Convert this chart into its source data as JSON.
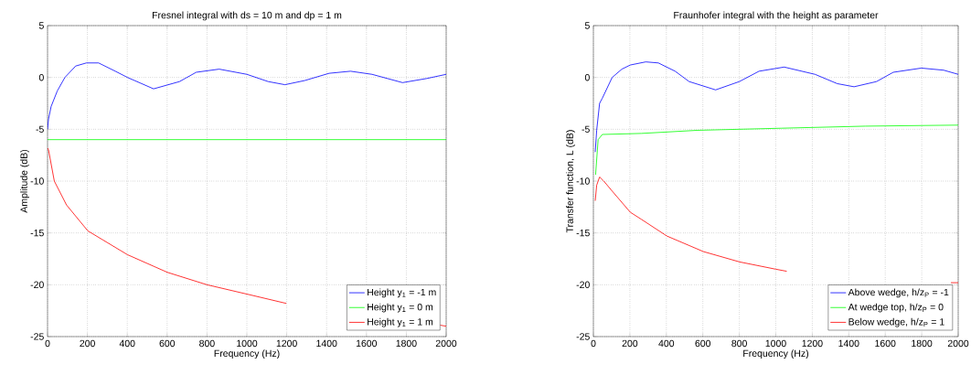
{
  "chart_data": [
    {
      "type": "line",
      "title": "Fresnel integral with ds = 10 m and dp = 1 m",
      "xlabel": "Frequency (Hz)",
      "ylabel": "Amplitude (dB)",
      "xlim": [
        0,
        2000
      ],
      "ylim": [
        -25,
        5
      ],
      "xticks": [
        0,
        200,
        400,
        600,
        800,
        1000,
        1200,
        1400,
        1600,
        1800,
        2000
      ],
      "yticks": [
        -25,
        -20,
        -15,
        -10,
        -5,
        0,
        5
      ],
      "grid": true,
      "legend": "bottom right",
      "series": [
        {
          "name": "Height y$_{1}$ = -1 m",
          "color": "#0000ff",
          "x": [
            0,
            5,
            18,
            49,
            87,
            141,
            195,
            256,
            340,
            401,
            532,
            662,
            746,
            861,
            1000,
            1107,
            1191,
            1290,
            1413,
            1520,
            1628,
            1781,
            1903,
            2000
          ],
          "values": [
            -5,
            -4,
            -2.8,
            -1.3,
            0,
            1.1,
            1.4,
            1.4,
            0.6,
            0,
            -1.1,
            -0.4,
            0.5,
            0.8,
            0.3,
            -0.4,
            -0.7,
            -0.3,
            0.4,
            0.6,
            0.3,
            -0.5,
            -0.1,
            0.3
          ]
        },
        {
          "name": "Height y$_{1}$ = 0 m",
          "color": "#00ff00",
          "x": [
            0,
            2000
          ],
          "values": [
            -6,
            -6
          ]
        },
        {
          "name": "Height y$_{1}$ = 1 m",
          "color": "#ff0000",
          "x": [
            0,
            5,
            34,
            95,
            202,
            401,
            601,
            800,
            1000,
            1198,
            1300,
            1970,
            2000
          ],
          "values": [
            -6.8,
            -7,
            -10,
            -12.3,
            -14.8,
            -17.1,
            -18.8,
            -20,
            -20.9,
            -21.8,
            null,
            -23.9,
            -24
          ]
        }
      ]
    },
    {
      "type": "line",
      "title": "Fraunhofer integral with the height as parameter",
      "xlabel": "Frequency (Hz)",
      "ylabel": "Transfer function, L (dB)",
      "xlim": [
        0,
        2000
      ],
      "ylim": [
        -25,
        5
      ],
      "xticks": [
        0,
        200,
        400,
        600,
        800,
        1000,
        1200,
        1400,
        1600,
        1800,
        2000
      ],
      "yticks": [
        -25,
        -20,
        -15,
        -10,
        -5,
        0,
        5
      ],
      "grid": true,
      "legend": "bottom right",
      "series": [
        {
          "name": "Above wedge,  h/z$_{P}$ = -1",
          "color": "#0000ff",
          "x": [
            10,
            18,
            34,
            49,
            103,
            156,
            202,
            287,
            356,
            448,
            525,
            670,
            800,
            908,
            1046,
            1215,
            1337,
            1429,
            1552,
            1644,
            1798,
            1920,
            2000
          ],
          "values": [
            -7.2,
            -5.1,
            -2.5,
            -2,
            0,
            0.8,
            1.2,
            1.5,
            1.4,
            0.6,
            -0.4,
            -1.2,
            -0.4,
            0.6,
            1,
            0.3,
            -0.6,
            -0.9,
            -0.4,
            0.5,
            0.9,
            0.7,
            0.3
          ]
        },
        {
          "name": "At wedge top, h/z$_{P}$ =  0",
          "color": "#00ff00",
          "x": [
            12,
            26,
            49,
            264,
            571,
            1031,
            1491,
            2000
          ],
          "values": [
            -9.4,
            -6,
            -5.5,
            -5.4,
            -5.1,
            -4.9,
            -4.7,
            -4.6
          ]
        },
        {
          "name": "Below wedge,  h/z$_{P}$ =  1",
          "color": "#ff0000",
          "x": [
            10,
            18,
            34,
            57,
            95,
            202,
            264,
            403,
            603,
            802,
            1000,
            1060,
            1400,
            1960,
            2000
          ],
          "values": [
            -11.9,
            -10.4,
            -9.6,
            -10,
            -10.8,
            -13,
            -13.7,
            -15.3,
            -16.8,
            -17.8,
            -18.5,
            -18.7,
            null,
            -19.8,
            -19.8
          ]
        }
      ]
    }
  ]
}
